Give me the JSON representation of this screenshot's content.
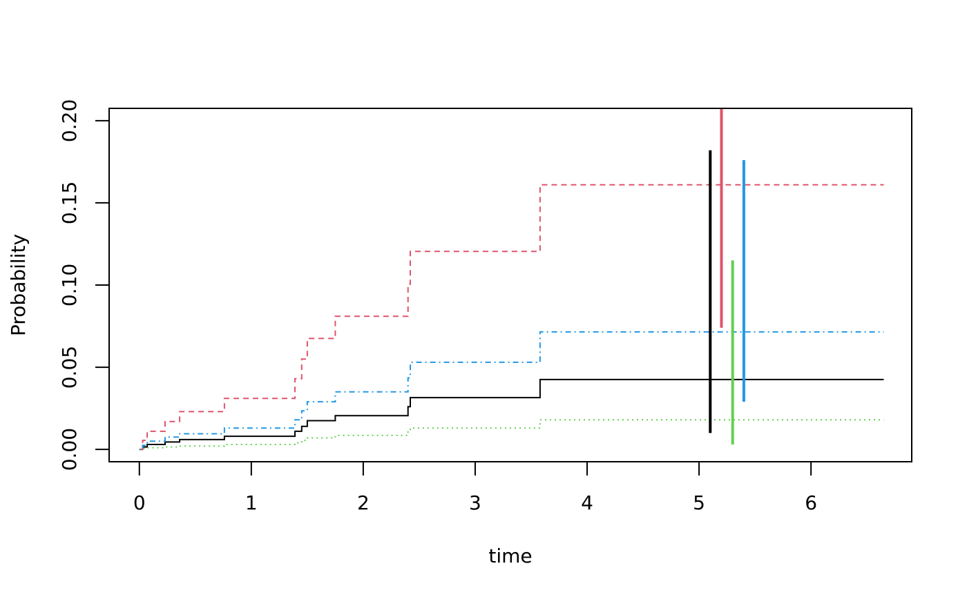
{
  "chart_data": {
    "type": "line",
    "title": "",
    "xlabel": "time",
    "ylabel": "Probability",
    "xlim": [
      -0.27,
      6.9
    ],
    "ylim": [
      -0.0075,
      0.2075
    ],
    "x_ticks": [
      0,
      1,
      2,
      3,
      4,
      5,
      6
    ],
    "x_tick_labels": [
      "0",
      "1",
      "2",
      "3",
      "4",
      "5",
      "6"
    ],
    "y_ticks": [
      0.0,
      0.05,
      0.1,
      0.15,
      0.2
    ],
    "y_tick_labels": [
      "0.00",
      "0.05",
      "0.10",
      "0.15",
      "0.20"
    ],
    "grid": false,
    "legend": "none",
    "series": [
      {
        "color": "#000000",
        "line_style": "solid",
        "x": [
          0,
          0.03,
          0.07,
          0.23,
          0.36,
          0.76,
          1.39,
          1.45,
          1.5,
          1.75,
          2.4,
          2.42,
          3.58,
          6.65
        ],
        "y": [
          0,
          0.0015,
          0.003,
          0.0045,
          0.006,
          0.008,
          0.011,
          0.014,
          0.0175,
          0.0205,
          0.026,
          0.0315,
          0.0425,
          0.0425
        ]
      },
      {
        "color": "#DF536B",
        "line_style": "dashed",
        "x": [
          0,
          0.03,
          0.07,
          0.23,
          0.36,
          0.76,
          1.39,
          1.45,
          1.5,
          1.75,
          2.4,
          2.42,
          3.58,
          6.65
        ],
        "y": [
          0,
          0.0055,
          0.011,
          0.017,
          0.023,
          0.031,
          0.043,
          0.055,
          0.0675,
          0.081,
          0.1005,
          0.1205,
          0.161,
          0.161
        ]
      },
      {
        "color": "#61D04F",
        "line_style": "dotted",
        "x": [
          0,
          0.03,
          0.07,
          0.23,
          0.36,
          0.76,
          1.39,
          1.45,
          1.5,
          1.75,
          2.4,
          2.42,
          3.58,
          6.65
        ],
        "y": [
          0,
          0.0005,
          0.001,
          0.0015,
          0.002,
          0.003,
          0.004,
          0.0055,
          0.007,
          0.0085,
          0.011,
          0.013,
          0.018,
          0.018
        ]
      },
      {
        "color": "#2297E6",
        "line_style": "dotdash",
        "x": [
          0,
          0.03,
          0.07,
          0.23,
          0.36,
          0.76,
          1.39,
          1.45,
          1.5,
          1.75,
          2.4,
          2.42,
          3.58,
          6.65
        ],
        "y": [
          0,
          0.0025,
          0.005,
          0.0075,
          0.0095,
          0.013,
          0.018,
          0.0235,
          0.029,
          0.035,
          0.0435,
          0.053,
          0.0715,
          0.0715
        ]
      }
    ],
    "intervals": [
      {
        "color": "#000000",
        "x": 5.1,
        "low": 0.01,
        "high": 0.182
      },
      {
        "color": "#DF536B",
        "x": 5.2,
        "low": 0.074,
        "high": 0.21
      },
      {
        "color": "#61D04F",
        "x": 5.3,
        "low": 0.003,
        "high": 0.115
      },
      {
        "color": "#2297E6",
        "x": 5.4,
        "low": 0.029,
        "high": 0.176
      }
    ]
  }
}
